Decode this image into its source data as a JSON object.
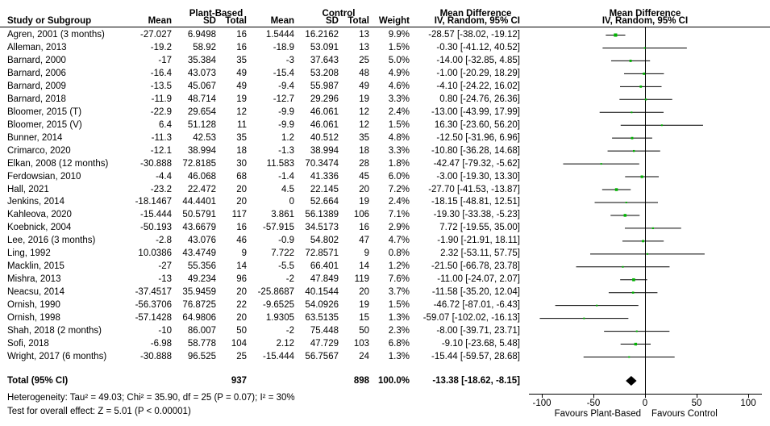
{
  "header": {
    "group1": "Plant-Based",
    "group2": "Control",
    "study_col": "Study or Subgroup",
    "mean": "Mean",
    "sd": "SD",
    "total": "Total",
    "weight": "Weight",
    "md_title": "Mean Difference",
    "md_method": "IV, Random, 95% CI",
    "plot_title": "Mean Difference",
    "plot_method": "IV, Random, 95% CI"
  },
  "chart_data": {
    "type": "forest",
    "xlim": [
      -100,
      100
    ],
    "xticks": [
      "-100",
      "-50",
      "0",
      "50",
      "100"
    ],
    "xtick_values": [
      -100,
      -50,
      0,
      50,
      100
    ],
    "xlabel_left": "Favours Plant-Based",
    "xlabel_right": "Favours Control",
    "colors": {
      "marker": "#00b400",
      "diamond": "#000000"
    },
    "studies": [
      {
        "study": "Agren, 2001 (3 months)",
        "m1": "-27.027",
        "sd1": "6.9498",
        "n1": "16",
        "m2": "1.5444",
        "sd2": "16.2162",
        "n2": "13",
        "weight": "9.9%",
        "ci": "-28.57 [-38.02, -19.12]",
        "md": -28.57,
        "lo": -38.02,
        "hi": -19.12,
        "w": 9.9
      },
      {
        "study": "Alleman, 2013",
        "m1": "-19.2",
        "sd1": "58.92",
        "n1": "16",
        "m2": "-18.9",
        "sd2": "53.091",
        "n2": "13",
        "weight": "1.5%",
        "ci": "-0.30 [-41.12, 40.52]",
        "md": -0.3,
        "lo": -41.12,
        "hi": 40.52,
        "w": 1.5
      },
      {
        "study": "Barnard, 2000",
        "m1": "-17",
        "sd1": "35.384",
        "n1": "35",
        "m2": "-3",
        "sd2": "37.643",
        "n2": "25",
        "weight": "5.0%",
        "ci": "-14.00 [-32.85, 4.85]",
        "md": -14.0,
        "lo": -32.85,
        "hi": 4.85,
        "w": 5.0
      },
      {
        "study": "Barnard, 2006",
        "m1": "-16.4",
        "sd1": "43.073",
        "n1": "49",
        "m2": "-15.4",
        "sd2": "53.208",
        "n2": "48",
        "weight": "4.9%",
        "ci": "-1.00 [-20.29, 18.29]",
        "md": -1.0,
        "lo": -20.29,
        "hi": 18.29,
        "w": 4.9
      },
      {
        "study": "Barnard, 2009",
        "m1": "-13.5",
        "sd1": "45.067",
        "n1": "49",
        "m2": "-9.4",
        "sd2": "55.987",
        "n2": "49",
        "weight": "4.6%",
        "ci": "-4.10 [-24.22, 16.02]",
        "md": -4.1,
        "lo": -24.22,
        "hi": 16.02,
        "w": 4.6
      },
      {
        "study": "Barnard, 2018",
        "m1": "-11.9",
        "sd1": "48.714",
        "n1": "19",
        "m2": "-12.7",
        "sd2": "29.296",
        "n2": "19",
        "weight": "3.3%",
        "ci": "0.80 [-24.76, 26.36]",
        "md": 0.8,
        "lo": -24.76,
        "hi": 26.36,
        "w": 3.3
      },
      {
        "study": "Bloomer, 2015 (T)",
        "m1": "-22.9",
        "sd1": "29.654",
        "n1": "12",
        "m2": "-9.9",
        "sd2": "46.061",
        "n2": "12",
        "weight": "2.4%",
        "ci": "-13.00 [-43.99, 17.99]",
        "md": -13.0,
        "lo": -43.99,
        "hi": 17.99,
        "w": 2.4
      },
      {
        "study": "Bloomer, 2015 (V)",
        "m1": "6.4",
        "sd1": "51.128",
        "n1": "11",
        "m2": "-9.9",
        "sd2": "46.061",
        "n2": "12",
        "weight": "1.5%",
        "ci": "16.30 [-23.60, 56.20]",
        "md": 16.3,
        "lo": -23.6,
        "hi": 56.2,
        "w": 1.5
      },
      {
        "study": "Bunner, 2014",
        "m1": "-11.3",
        "sd1": "42.53",
        "n1": "35",
        "m2": "1.2",
        "sd2": "40.512",
        "n2": "35",
        "weight": "4.8%",
        "ci": "-12.50 [-31.96, 6.96]",
        "md": -12.5,
        "lo": -31.96,
        "hi": 6.96,
        "w": 4.8
      },
      {
        "study": "Crimarco, 2020",
        "m1": "-12.1",
        "sd1": "38.994",
        "n1": "18",
        "m2": "-1.3",
        "sd2": "38.994",
        "n2": "18",
        "weight": "3.3%",
        "ci": "-10.80 [-36.28, 14.68]",
        "md": -10.8,
        "lo": -36.28,
        "hi": 14.68,
        "w": 3.3
      },
      {
        "study": "Elkan, 2008 (12 months)",
        "m1": "-30.888",
        "sd1": "72.8185",
        "n1": "30",
        "m2": "11.583",
        "sd2": "70.3474",
        "n2": "28",
        "weight": "1.8%",
        "ci": "-42.47 [-79.32, -5.62]",
        "md": -42.47,
        "lo": -79.32,
        "hi": -5.62,
        "w": 1.8
      },
      {
        "study": "Ferdowsian, 2010",
        "m1": "-4.4",
        "sd1": "46.068",
        "n1": "68",
        "m2": "-1.4",
        "sd2": "41.336",
        "n2": "45",
        "weight": "6.0%",
        "ci": "-3.00 [-19.30, 13.30]",
        "md": -3.0,
        "lo": -19.3,
        "hi": 13.3,
        "w": 6.0
      },
      {
        "study": "Hall, 2021",
        "m1": "-23.2",
        "sd1": "22.472",
        "n1": "20",
        "m2": "4.5",
        "sd2": "22.145",
        "n2": "20",
        "weight": "7.2%",
        "ci": "-27.70 [-41.53, -13.87]",
        "md": -27.7,
        "lo": -41.53,
        "hi": -13.87,
        "w": 7.2
      },
      {
        "study": "Jenkins, 2014",
        "m1": "-18.1467",
        "sd1": "44.4401",
        "n1": "20",
        "m2": "0",
        "sd2": "52.664",
        "n2": "19",
        "weight": "2.4%",
        "ci": "-18.15 [-48.81, 12.51]",
        "md": -18.15,
        "lo": -48.81,
        "hi": 12.51,
        "w": 2.4
      },
      {
        "study": "Kahleova, 2020",
        "m1": "-15.444",
        "sd1": "50.5791",
        "n1": "117",
        "m2": "3.861",
        "sd2": "56.1389",
        "n2": "106",
        "weight": "7.1%",
        "ci": "-19.30 [-33.38, -5.23]",
        "md": -19.3,
        "lo": -33.38,
        "hi": -5.23,
        "w": 7.1
      },
      {
        "study": "Koebnick, 2004",
        "m1": "-50.193",
        "sd1": "43.6679",
        "n1": "16",
        "m2": "-57.915",
        "sd2": "34.5173",
        "n2": "16",
        "weight": "2.9%",
        "ci": "7.72 [-19.55, 35.00]",
        "md": 7.72,
        "lo": -19.55,
        "hi": 35.0,
        "w": 2.9
      },
      {
        "study": "Lee, 2016 (3 months)",
        "m1": "-2.8",
        "sd1": "43.076",
        "n1": "46",
        "m2": "-0.9",
        "sd2": "54.802",
        "n2": "47",
        "weight": "4.7%",
        "ci": "-1.90 [-21.91, 18.11]",
        "md": -1.9,
        "lo": -21.91,
        "hi": 18.11,
        "w": 4.7
      },
      {
        "study": "Ling, 1992",
        "m1": "10.0386",
        "sd1": "43.4749",
        "n1": "9",
        "m2": "7.722",
        "sd2": "72.8571",
        "n2": "9",
        "weight": "0.8%",
        "ci": "2.32 [-53.11, 57.75]",
        "md": 2.32,
        "lo": -53.11,
        "hi": 57.75,
        "w": 0.8
      },
      {
        "study": "Macklin, 2015",
        "m1": "-27",
        "sd1": "55.356",
        "n1": "14",
        "m2": "-5.5",
        "sd2": "66.401",
        "n2": "14",
        "weight": "1.2%",
        "ci": "-21.50 [-66.78, 23.78]",
        "md": -21.5,
        "lo": -66.78,
        "hi": 23.78,
        "w": 1.2
      },
      {
        "study": "Mishra, 2013",
        "m1": "-13",
        "sd1": "49.234",
        "n1": "96",
        "m2": "-2",
        "sd2": "47.849",
        "n2": "119",
        "weight": "7.6%",
        "ci": "-11.00 [-24.07, 2.07]",
        "md": -11.0,
        "lo": -24.07,
        "hi": 2.07,
        "w": 7.6
      },
      {
        "study": "Neacsu, 2014",
        "m1": "-37.4517",
        "sd1": "35.9459",
        "n1": "20",
        "m2": "-25.8687",
        "sd2": "40.1544",
        "n2": "20",
        "weight": "3.7%",
        "ci": "-11.58 [-35.20, 12.04]",
        "md": -11.58,
        "lo": -35.2,
        "hi": 12.04,
        "w": 3.7
      },
      {
        "study": "Ornish, 1990",
        "m1": "-56.3706",
        "sd1": "76.8725",
        "n1": "22",
        "m2": "-9.6525",
        "sd2": "54.0926",
        "n2": "19",
        "weight": "1.5%",
        "ci": "-46.72 [-87.01, -6.43]",
        "md": -46.72,
        "lo": -87.01,
        "hi": -6.43,
        "w": 1.5
      },
      {
        "study": "Ornish, 1998",
        "m1": "-57.1428",
        "sd1": "64.9806",
        "n1": "20",
        "m2": "1.9305",
        "sd2": "63.5135",
        "n2": "15",
        "weight": "1.3%",
        "ci": "-59.07 [-102.02, -16.13]",
        "md": -59.07,
        "lo": -102.02,
        "hi": -16.13,
        "w": 1.3
      },
      {
        "study": "Shah, 2018 (2 months)",
        "m1": "-10",
        "sd1": "86.007",
        "n1": "50",
        "m2": "-2",
        "sd2": "75.448",
        "n2": "50",
        "weight": "2.3%",
        "ci": "-8.00 [-39.71, 23.71]",
        "md": -8.0,
        "lo": -39.71,
        "hi": 23.71,
        "w": 2.3
      },
      {
        "study": "Sofi, 2018",
        "m1": "-6.98",
        "sd1": "58.778",
        "n1": "104",
        "m2": "2.12",
        "sd2": "47.729",
        "n2": "103",
        "weight": "6.8%",
        "ci": "-9.10 [-23.68, 5.48]",
        "md": -9.1,
        "lo": -23.68,
        "hi": 5.48,
        "w": 6.8
      },
      {
        "study": "Wright, 2017 (6 months)",
        "m1": "-30.888",
        "sd1": "96.525",
        "n1": "25",
        "m2": "-15.444",
        "sd2": "56.7567",
        "n2": "24",
        "weight": "1.3%",
        "ci": "-15.44 [-59.57, 28.68]",
        "md": -15.44,
        "lo": -59.57,
        "hi": 28.68,
        "w": 1.3
      }
    ],
    "total": {
      "label": "Total (95% CI)",
      "n1": "937",
      "n2": "898",
      "weight": "100.0%",
      "ci": "-13.38 [-18.62, -8.15]",
      "md": -13.38,
      "lo": -18.62,
      "hi": -8.15
    },
    "heterogeneity": "Heterogeneity: Tau² = 49.03; Chi² = 35.90, df = 25 (P = 0.07); I² = 30%",
    "overall_effect": "Test for overall effect: Z = 5.01 (P < 0.00001)"
  }
}
